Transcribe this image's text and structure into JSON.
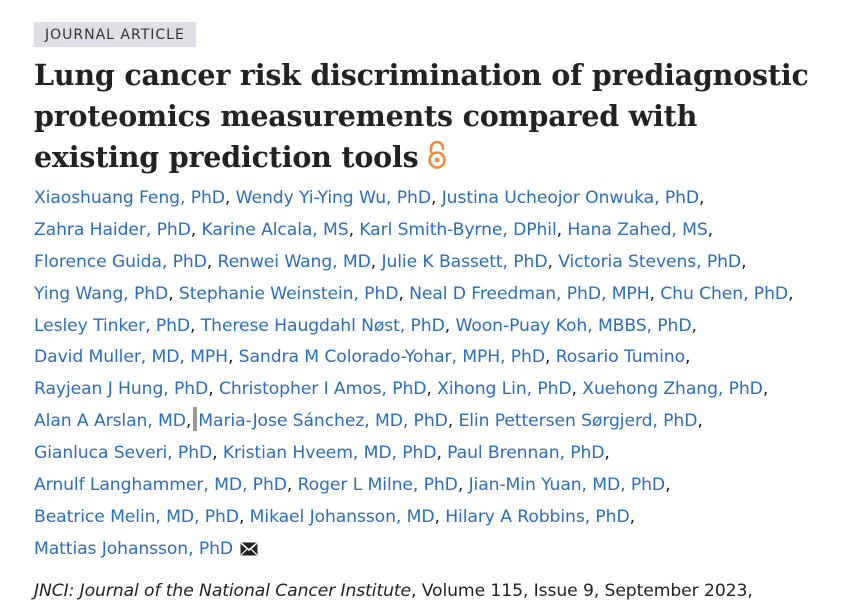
{
  "article_type": "JOURNAL ARTICLE",
  "title": "Lung cancer risk discrimination of prediagnostic proteomics measurements compared with existing prediction tools",
  "open_access_icon": "open-access-icon",
  "author_lines": [
    [
      "Xiaoshuang Feng, PhD",
      "Wendy Yi-Ying Wu, PhD",
      "Justina Ucheojor Onwuka, PhD"
    ],
    [
      "Zahra Haider, PhD",
      "Karine Alcala, MS",
      "Karl Smith-Byrne, DPhil",
      "Hana Zahed, MS"
    ],
    [
      "Florence Guida, PhD",
      "Renwei Wang, MD",
      "Julie K Bassett, PhD",
      "Victoria Stevens, PhD"
    ],
    [
      "Ying Wang, PhD",
      "Stephanie Weinstein, PhD",
      "Neal D Freedman, PhD, MPH",
      "Chu Chen, PhD"
    ],
    [
      "Lesley Tinker, PhD",
      "Therese Haugdahl Nøst, PhD",
      "Woon-Puay Koh, MBBS, PhD"
    ],
    [
      "David Muller, MD, MPH",
      "Sandra M Colorado-Yohar, MPH, PhD",
      "Rosario Tumino"
    ],
    [
      "Rayjean J Hung, PhD",
      "Christopher I Amos, PhD",
      "Xihong Lin, PhD",
      "Xuehong Zhang, PhD"
    ],
    [
      "Alan A Arslan, MD",
      "Maria-Jose Sánchez, MD, PhD",
      "Elin Pettersen Sørgjerd, PhD"
    ],
    [
      "Gianluca Severi, PhD",
      "Kristian Hveem, MD, PhD",
      "Paul Brennan, PhD"
    ],
    [
      "Arnulf Langhammer, MD, PhD",
      "Roger L Milne, PhD",
      "Jian-Min Yuan, MD, PhD"
    ],
    [
      "Beatrice Melin, MD, PhD",
      "Mikael Johansson, MD",
      "Hilary A Robbins, PhD"
    ],
    [
      "Mattias Johansson, PhD"
    ]
  ],
  "corresponding_author_icon": "envelope-icon",
  "citation": {
    "journal": "JNCI: Journal of the National Cancer Institute",
    "details": ", Volume 115, Issue 9, September 2023,"
  },
  "colors": {
    "link": "#2a6ebb",
    "open_access": "#f38b3c",
    "badge_bg": "#dedfe6"
  }
}
